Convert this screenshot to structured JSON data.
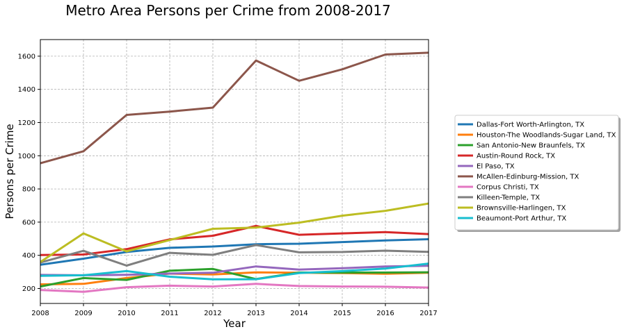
{
  "chart_data": {
    "type": "line",
    "title": "Metro Area Persons per Crime from 2008-2017",
    "xlabel": "Year",
    "ylabel": "Persons per Crime",
    "x": [
      2008,
      2009,
      2010,
      2011,
      2012,
      2013,
      2014,
      2015,
      2016,
      2017
    ],
    "xlim": [
      2008,
      2017
    ],
    "ylim": [
      110,
      1700
    ],
    "yticks": [
      200,
      400,
      600,
      800,
      1000,
      1200,
      1400,
      1600
    ],
    "grid": true,
    "legend_position": "right",
    "series": [
      {
        "name": "Dallas-Fort Worth-Arlington, TX",
        "color": "#1f77b4",
        "values": [
          343,
          380,
          420,
          445,
          453,
          467,
          470,
          480,
          490,
          497
        ]
      },
      {
        "name": "Houston-The Woodlands-Sugar Land, TX",
        "color": "#ff7f0e",
        "values": [
          225,
          228,
          263,
          290,
          285,
          297,
          295,
          293,
          289,
          295
        ]
      },
      {
        "name": "San Antonio-New Braunfels, TX",
        "color": "#2ca02c",
        "values": [
          212,
          263,
          252,
          307,
          318,
          257,
          296,
          296,
          296,
          298
        ]
      },
      {
        "name": "Austin-Round Rock, TX",
        "color": "#d62728",
        "values": [
          402,
          405,
          437,
          496,
          518,
          577,
          524,
          532,
          540,
          528
        ]
      },
      {
        "name": "El Paso, TX",
        "color": "#9467bd",
        "values": [
          282,
          280,
          283,
          290,
          295,
          333,
          314,
          322,
          333,
          337
        ]
      },
      {
        "name": "McAllen-Edinburg-Mission, TX",
        "color": "#8c564b",
        "values": [
          955,
          1027,
          1246,
          1266,
          1290,
          1574,
          1452,
          1521,
          1610,
          1621
        ]
      },
      {
        "name": "Corpus Christi, TX",
        "color": "#e377c2",
        "values": [
          191,
          180,
          208,
          217,
          212,
          228,
          215,
          212,
          211,
          206
        ]
      },
      {
        "name": "Killeen-Temple, TX",
        "color": "#7f7f7f",
        "values": [
          357,
          427,
          338,
          415,
          403,
          462,
          418,
          420,
          428,
          421
        ]
      },
      {
        "name": "Brownsville-Harlingen, TX",
        "color": "#bcbd22",
        "values": [
          360,
          532,
          424,
          492,
          560,
          567,
          597,
          639,
          668,
          712
        ]
      },
      {
        "name": "Beaumont-Port Arthur, TX",
        "color": "#17becf",
        "values": [
          276,
          280,
          305,
          271,
          255,
          256,
          293,
          305,
          320,
          350
        ]
      }
    ]
  }
}
